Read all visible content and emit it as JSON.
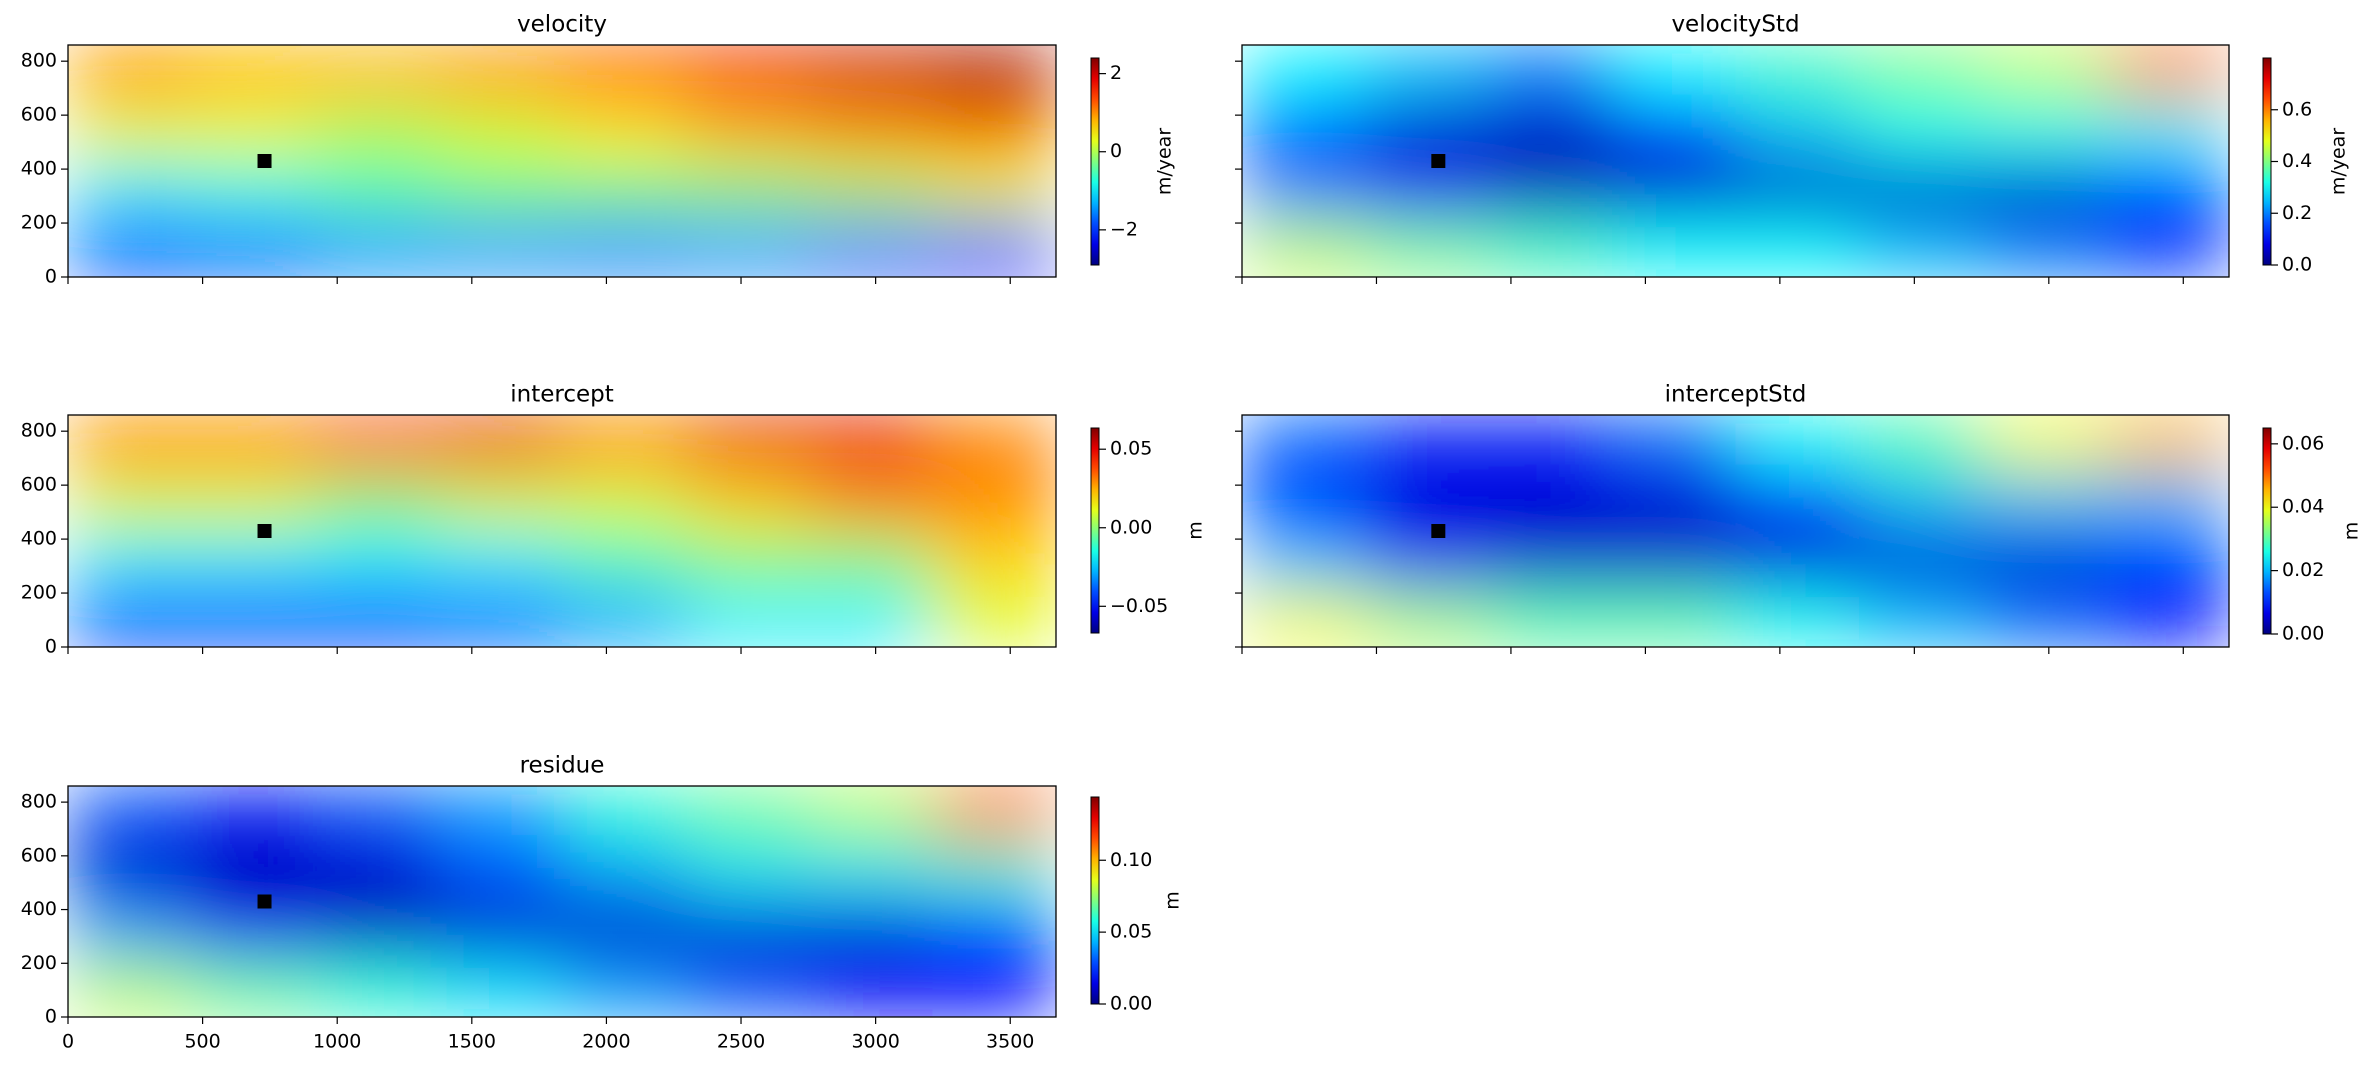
{
  "chart_data": [
    {
      "type": "heatmap",
      "title": "velocity",
      "ylim": [
        0,
        860
      ],
      "yticks": [
        0,
        200,
        400,
        600,
        800
      ],
      "z": [
        [
          1,
          0.8,
          0.8,
          1,
          1.3,
          1.8,
          2,
          2.2
        ],
        [
          0.3,
          0.3,
          0,
          0.2,
          0.5,
          0.8,
          1,
          1.2
        ],
        [
          -1,
          -0.8,
          -0.5,
          -0.3,
          -0.3,
          -0.2,
          0,
          0.3
        ],
        [
          -2,
          -1.8,
          -1.5,
          -1.5,
          -1.6,
          -1.5,
          -1.8,
          -2.2
        ]
      ],
      "points": {
        "x": [
          730
        ],
        "y": [
          430
        ],
        "color": "#000000"
      },
      "colorbar": {
        "label": "m/year",
        "lim": [
          -2.9,
          2.4
        ],
        "ticks": [
          {
            "value": -2,
            "label": "−2"
          },
          0,
          2
        ]
      }
    },
    {
      "type": "heatmap",
      "title": "velocityStd",
      "z": [
        [
          0.3,
          0.25,
          0.2,
          0.3,
          0.35,
          0.4,
          0.45,
          0.6
        ],
        [
          0.15,
          0.05,
          0.05,
          0.1,
          0.25,
          0.3,
          0.3,
          0.3
        ],
        [
          0.2,
          0.1,
          0.05,
          0.05,
          0.05,
          0.05,
          0.05,
          0.1
        ],
        [
          0.45,
          0.4,
          0.35,
          0.3,
          0.3,
          0.25,
          0.2,
          0.15
        ]
      ],
      "points": {
        "x": [
          730
        ],
        "y": [
          430
        ],
        "color": "#000000"
      },
      "colorbar": {
        "label": "m/year",
        "lim": [
          0,
          0.8
        ],
        "ticks": [
          {
            "value": 0,
            "label": "0.0"
          },
          0.2,
          0.4,
          0.6
        ]
      }
    },
    {
      "type": "heatmap",
      "title": "intercept",
      "ylim": [
        0,
        860
      ],
      "yticks": [
        0,
        200,
        400,
        600,
        800
      ],
      "z": [
        [
          0.03,
          0.03,
          0.04,
          0.05,
          0.03,
          0.05,
          0.05,
          0.03
        ],
        [
          0.01,
          0.01,
          0,
          0.01,
          0.01,
          0.02,
          0.03,
          0.03
        ],
        [
          -0.02,
          -0.02,
          -0.02,
          -0.02,
          -0.01,
          0,
          0,
          0.02
        ],
        [
          -0.05,
          -0.05,
          -0.05,
          -0.04,
          -0.03,
          -0.02,
          -0.02,
          0.01
        ]
      ],
      "points": {
        "x": [
          730
        ],
        "y": [
          430
        ],
        "color": "#000000"
      },
      "colorbar": {
        "label": "m",
        "lim": [
          -0.067,
          0.0635
        ],
        "ticks": [
          {
            "value": -0.05,
            "label": "−0.05"
          },
          {
            "value": 0,
            "label": "0.00"
          },
          0.05
        ]
      }
    },
    {
      "type": "heatmap",
      "title": "interceptStd",
      "z": [
        [
          0.015,
          0.01,
          0.01,
          0.015,
          0.025,
          0.03,
          0.04,
          0.045
        ],
        [
          0.01,
          0.005,
          0.005,
          0.005,
          0.01,
          0.02,
          0.02,
          0.02
        ],
        [
          0.02,
          0.01,
          0.005,
          0.005,
          0.005,
          0.005,
          0.005,
          0.01
        ],
        [
          0.04,
          0.035,
          0.03,
          0.03,
          0.025,
          0.02,
          0.015,
          0.01
        ]
      ],
      "points": {
        "x": [
          730
        ],
        "y": [
          430
        ],
        "color": "#000000"
      },
      "colorbar": {
        "label": "m",
        "lim": [
          0,
          0.065
        ],
        "ticks": [
          {
            "value": 0,
            "label": "0.00"
          },
          0.02,
          0.04,
          0.06
        ]
      }
    },
    {
      "type": "heatmap",
      "title": "residue",
      "xlim": [
        0,
        3670
      ],
      "xticks": [
        0,
        500,
        1000,
        1500,
        2000,
        2500,
        3000,
        3500
      ],
      "ylim": [
        0,
        860
      ],
      "yticks": [
        0,
        200,
        400,
        600,
        800
      ],
      "z": [
        [
          0.03,
          0.02,
          0.03,
          0.04,
          0.06,
          0.07,
          0.08,
          0.11
        ],
        [
          0.01,
          0.005,
          0.01,
          0.03,
          0.04,
          0.05,
          0.05,
          0.06
        ],
        [
          0.04,
          0.02,
          0.01,
          0.01,
          0.01,
          0.01,
          0.01,
          0.02
        ],
        [
          0.08,
          0.07,
          0.06,
          0.05,
          0.04,
          0.03,
          0.02,
          0.02
        ]
      ],
      "points": {
        "x": [
          730
        ],
        "y": [
          430
        ],
        "color": "#000000"
      },
      "colorbar": {
        "label": "m",
        "lim": [
          0,
          0.144
        ],
        "ticks": [
          {
            "value": 0,
            "label": "0.00"
          },
          0.05,
          {
            "value": 0.1,
            "label": "0.10"
          }
        ]
      }
    }
  ]
}
